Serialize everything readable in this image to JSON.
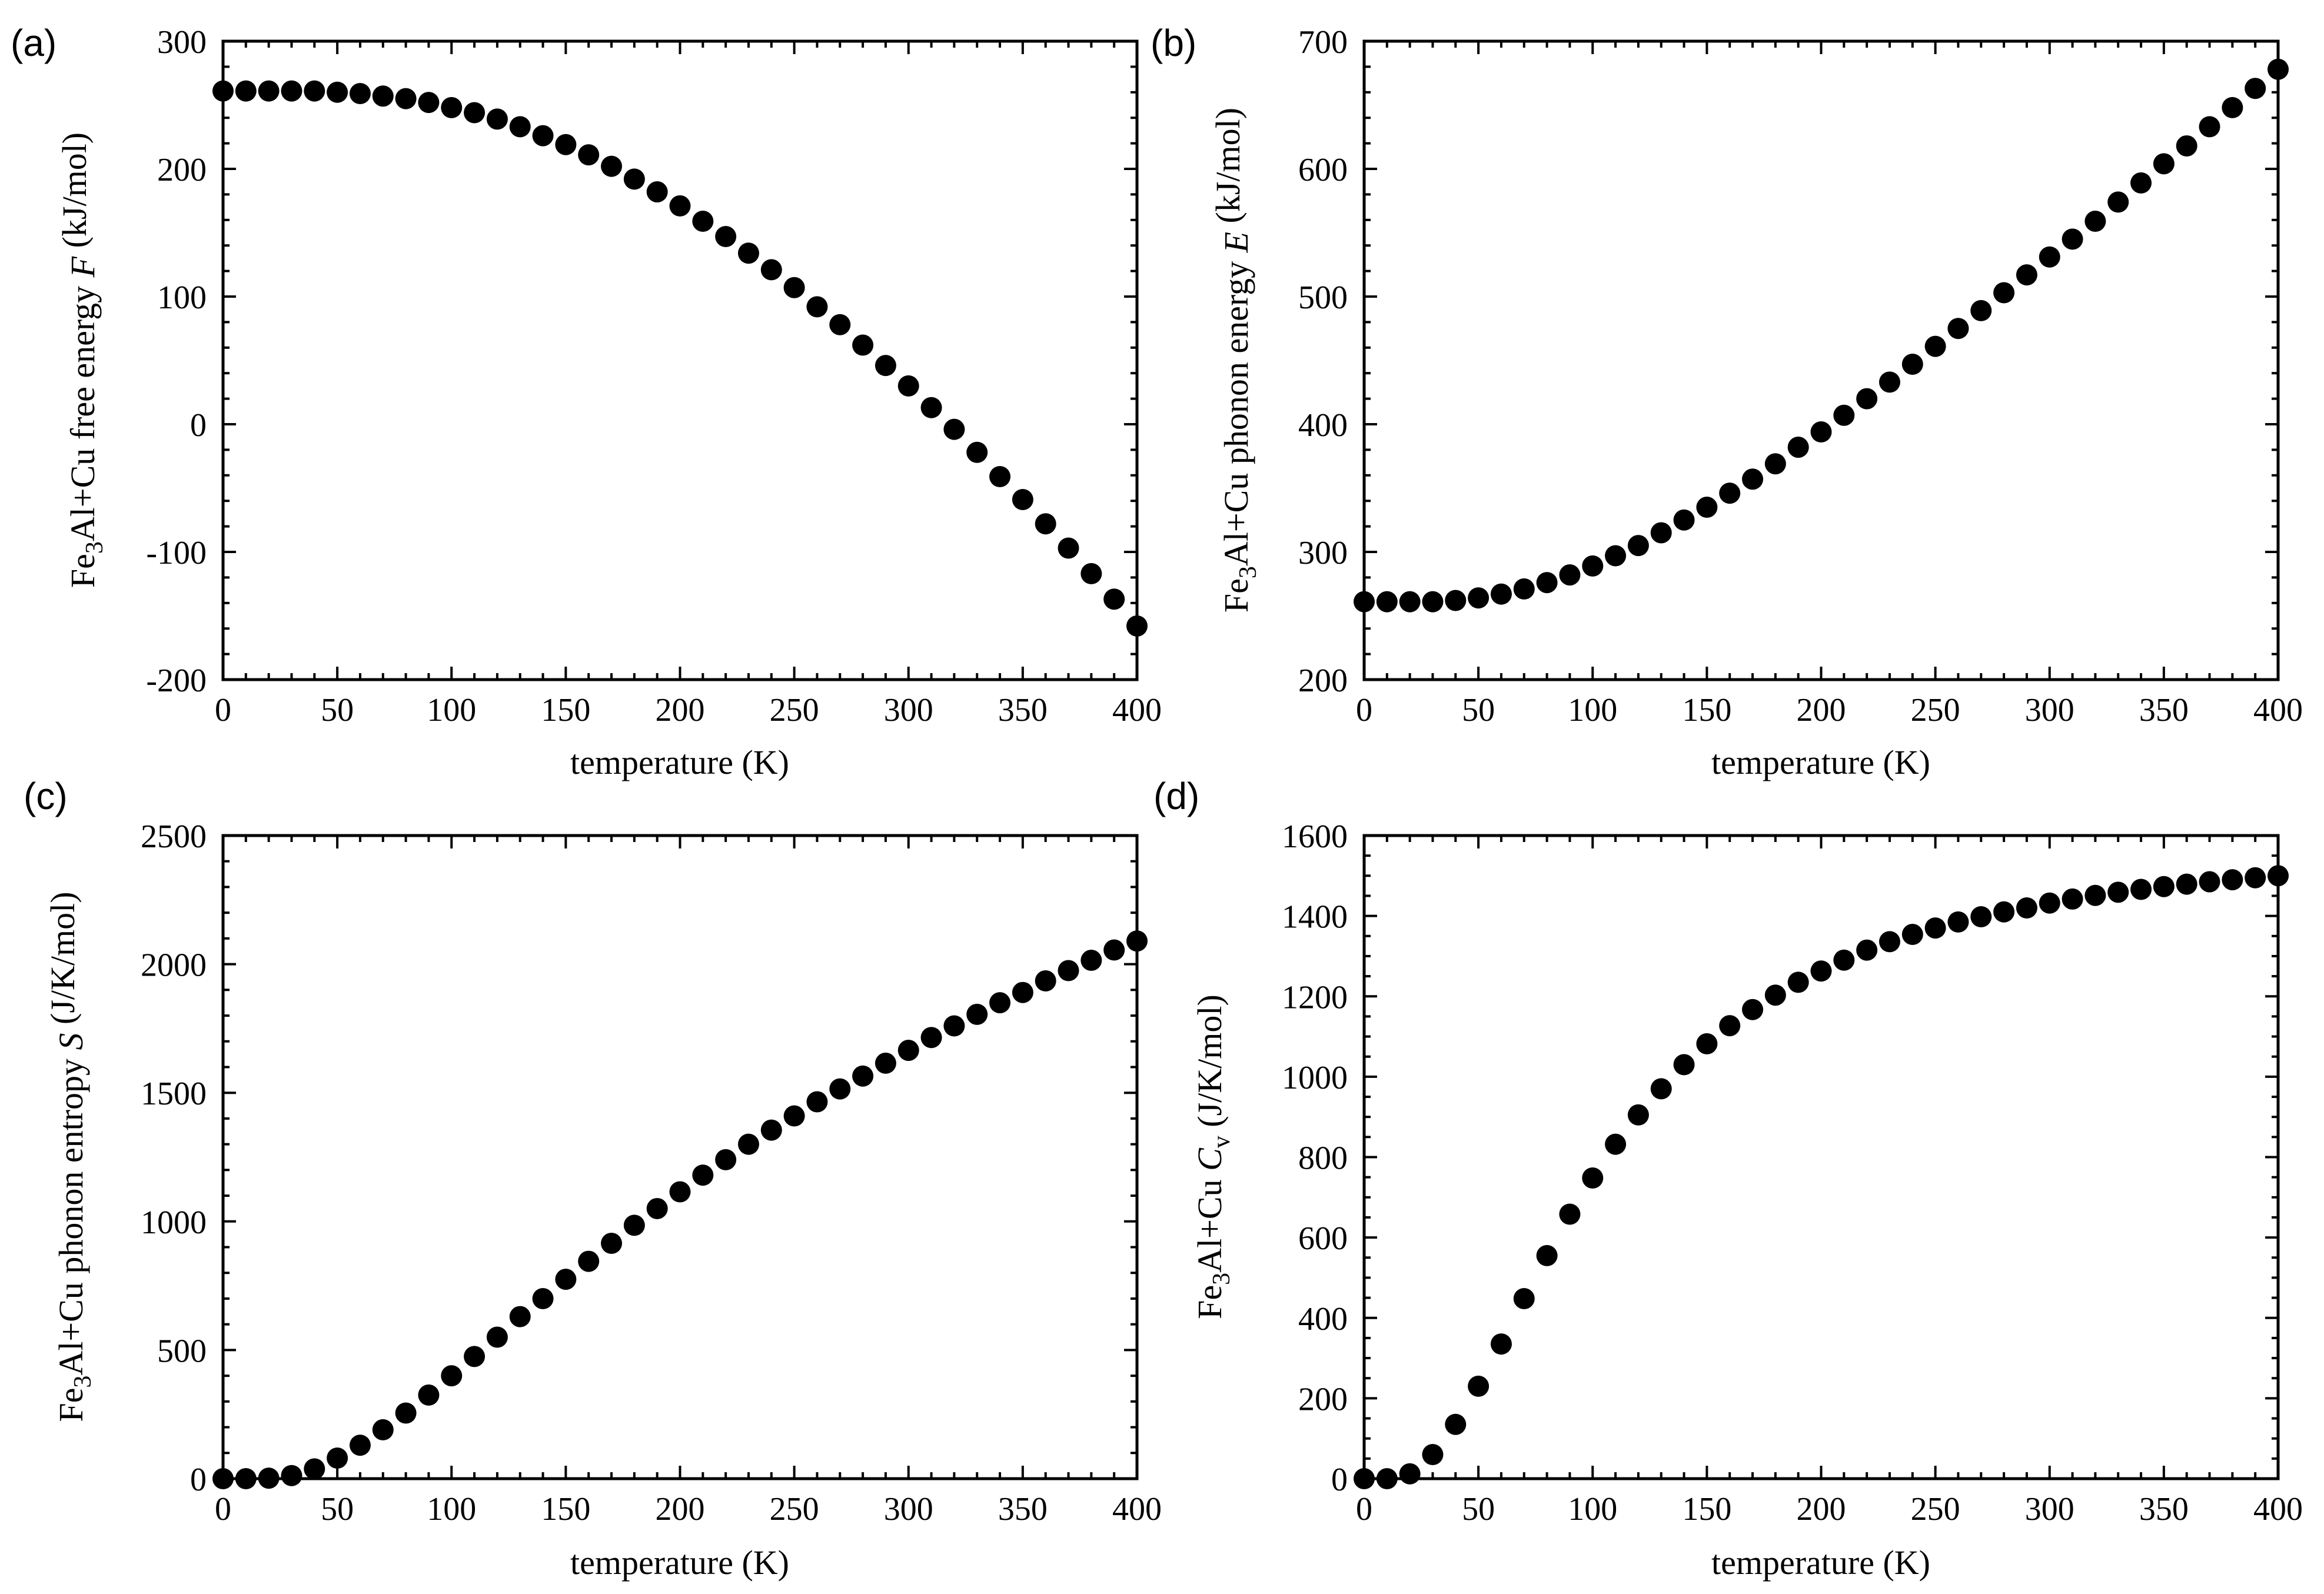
{
  "figure": {
    "background": "#ffffff",
    "marker_color": "#000000"
  },
  "chart_data": [
    {
      "id": "a",
      "panel_label": "(a)",
      "type": "scatter",
      "xlabel": "temperature (K)",
      "ylabel": {
        "pre": "Fe",
        "sub": "3",
        "mid": "Al+Cu free energy ",
        "var": "F",
        "var_sub": "",
        "post": " (kJ/mol)"
      },
      "xlim": [
        0,
        400
      ],
      "ylim": [
        -200,
        300
      ],
      "x_ticks": [
        0,
        50,
        100,
        150,
        200,
        250,
        300,
        350,
        400
      ],
      "y_ticks": [
        -200,
        -100,
        0,
        100,
        200,
        300
      ],
      "x_minor_step": 10,
      "y_minor_step": 20,
      "x": [
        0,
        10,
        20,
        30,
        40,
        50,
        60,
        70,
        80,
        90,
        100,
        110,
        120,
        130,
        140,
        150,
        160,
        170,
        180,
        190,
        200,
        210,
        220,
        230,
        240,
        250,
        260,
        270,
        280,
        290,
        300,
        310,
        320,
        330,
        340,
        350,
        360,
        370,
        380,
        390,
        400
      ],
      "y": [
        261,
        261,
        261,
        261,
        261,
        260,
        259,
        257,
        255,
        252,
        248,
        244,
        239,
        233,
        226,
        219,
        211,
        202,
        192,
        182,
        171,
        159,
        147,
        134,
        121,
        107,
        92,
        78,
        62,
        46,
        30,
        13,
        -4,
        -22,
        -41,
        -59,
        -78,
        -97,
        -117,
        -137,
        -158
      ]
    },
    {
      "id": "b",
      "panel_label": "(b)",
      "type": "scatter",
      "xlabel": "temperature (K)",
      "ylabel": {
        "pre": "Fe",
        "sub": "3",
        "mid": "Al+Cu phonon energy ",
        "var": "E",
        "var_sub": "",
        "post": " (kJ/mol)"
      },
      "xlim": [
        0,
        400
      ],
      "ylim": [
        200,
        700
      ],
      "x_ticks": [
        0,
        50,
        100,
        150,
        200,
        250,
        300,
        350,
        400
      ],
      "y_ticks": [
        200,
        300,
        400,
        500,
        600,
        700
      ],
      "x_minor_step": 10,
      "y_minor_step": 20,
      "x": [
        0,
        10,
        20,
        30,
        40,
        50,
        60,
        70,
        80,
        90,
        100,
        110,
        120,
        130,
        140,
        150,
        160,
        170,
        180,
        190,
        200,
        210,
        220,
        230,
        240,
        250,
        260,
        270,
        280,
        290,
        300,
        310,
        320,
        330,
        340,
        350,
        360,
        370,
        380,
        390,
        400
      ],
      "y": [
        261,
        261,
        261,
        261,
        262,
        264,
        267,
        271,
        276,
        282,
        289,
        297,
        305,
        315,
        325,
        335,
        346,
        357,
        369,
        382,
        394,
        407,
        420,
        433,
        447,
        461,
        475,
        489,
        503,
        517,
        531,
        545,
        559,
        574,
        589,
        604,
        618,
        633,
        648,
        663,
        678
      ]
    },
    {
      "id": "c",
      "panel_label": "(c)",
      "type": "scatter",
      "xlabel": "temperature (K)",
      "ylabel": {
        "pre": "Fe",
        "sub": "3",
        "mid": "Al+Cu phonon entropy ",
        "var": "S",
        "var_sub": "",
        "post": " (J/K/mol)"
      },
      "xlim": [
        0,
        400
      ],
      "ylim": [
        0,
        2500
      ],
      "x_ticks": [
        0,
        50,
        100,
        150,
        200,
        250,
        300,
        350,
        400
      ],
      "y_ticks": [
        0,
        500,
        1000,
        1500,
        2000,
        2500
      ],
      "x_minor_step": 10,
      "y_minor_step": 100,
      "x": [
        0,
        10,
        20,
        30,
        40,
        50,
        60,
        70,
        80,
        90,
        100,
        110,
        120,
        130,
        140,
        150,
        160,
        170,
        180,
        190,
        200,
        210,
        220,
        230,
        240,
        250,
        260,
        270,
        280,
        290,
        300,
        310,
        320,
        330,
        340,
        350,
        360,
        370,
        380,
        390,
        400
      ],
      "y": [
        0,
        0,
        2,
        12,
        38,
        80,
        130,
        190,
        255,
        325,
        400,
        475,
        550,
        630,
        700,
        775,
        845,
        915,
        985,
        1050,
        1115,
        1180,
        1240,
        1300,
        1355,
        1410,
        1465,
        1515,
        1565,
        1615,
        1665,
        1715,
        1760,
        1805,
        1850,
        1890,
        1935,
        1975,
        2015,
        2055,
        2090
      ]
    },
    {
      "id": "d",
      "panel_label": "(d)",
      "type": "scatter",
      "xlabel": "temperature (K)",
      "ylabel": {
        "pre": "Fe",
        "sub": "3",
        "mid": "Al+Cu ",
        "var": "C",
        "var_sub": "v",
        "post": " (J/K/mol)"
      },
      "xlim": [
        0,
        400
      ],
      "ylim": [
        0,
        1600
      ],
      "x_ticks": [
        0,
        50,
        100,
        150,
        200,
        250,
        300,
        350,
        400
      ],
      "y_ticks": [
        0,
        200,
        400,
        600,
        800,
        1000,
        1200,
        1400,
        1600
      ],
      "x_minor_step": 10,
      "y_minor_step": 50,
      "x": [
        0,
        10,
        20,
        30,
        40,
        50,
        60,
        70,
        80,
        90,
        100,
        110,
        120,
        130,
        140,
        150,
        160,
        170,
        180,
        190,
        200,
        210,
        220,
        230,
        240,
        250,
        260,
        270,
        280,
        290,
        300,
        310,
        320,
        330,
        340,
        350,
        360,
        370,
        380,
        390,
        400
      ],
      "y": [
        0,
        0,
        12,
        60,
        135,
        230,
        335,
        448,
        555,
        658,
        748,
        832,
        905,
        970,
        1030,
        1082,
        1127,
        1167,
        1203,
        1235,
        1263,
        1290,
        1315,
        1336,
        1354,
        1370,
        1385,
        1398,
        1410,
        1420,
        1432,
        1442,
        1451,
        1459,
        1466,
        1473,
        1479,
        1485,
        1490,
        1495,
        1500
      ]
    }
  ]
}
